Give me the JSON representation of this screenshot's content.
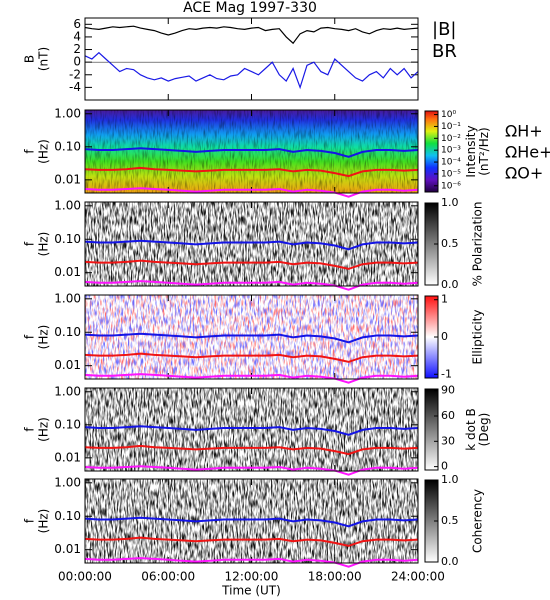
{
  "chart_data": [
    {
      "type": "line",
      "title": "ACE Mag 1997-330",
      "ylabel": [
        "B",
        "(nT)"
      ],
      "ylim": [
        -6,
        7
      ],
      "yticks": [
        -4,
        -2,
        0,
        2,
        4,
        6
      ],
      "x": [
        0,
        0.5,
        1,
        1.5,
        2,
        2.5,
        3,
        3.5,
        4,
        4.5,
        5,
        5.5,
        6,
        6.5,
        7,
        7.5,
        8,
        8.5,
        9,
        9.5,
        10,
        10.5,
        11,
        11.5,
        12,
        12.5,
        13,
        13.5,
        14,
        14.5,
        15,
        15.5,
        16,
        16.5,
        17,
        17.5,
        18,
        18.5,
        19,
        19.5,
        20,
        20.5,
        21,
        21.5,
        22,
        22.5,
        23,
        23.5,
        24
      ],
      "series": [
        {
          "name": "|B|",
          "color": "#000000",
          "values": [
            5.5,
            5.3,
            5.2,
            5.4,
            5.6,
            5.5,
            5.6,
            5.7,
            5.4,
            5.2,
            5.0,
            4.6,
            4.3,
            4.6,
            5.0,
            5.3,
            5.2,
            5.4,
            5.5,
            5.4,
            5.6,
            5.5,
            5.3,
            5.2,
            5.4,
            5.5,
            5.0,
            5.2,
            5.3,
            4.0,
            3.0,
            4.5,
            5.0,
            4.8,
            5.4,
            5.5,
            5.3,
            5.2,
            5.0,
            5.3,
            4.8,
            4.5,
            5.0,
            5.3,
            5.2,
            5.4,
            5.2,
            5.3,
            5.4
          ]
        },
        {
          "name": "BR",
          "color": "#1a1ae6",
          "values": [
            1.0,
            0.5,
            1.5,
            0.5,
            -0.5,
            -1.5,
            -1.0,
            -1.2,
            -2.0,
            -2.5,
            -2.8,
            -2.5,
            -3.0,
            -2.6,
            -2.4,
            -2.2,
            -3.0,
            -2.5,
            -2.0,
            -2.6,
            -2.8,
            -2.2,
            -2.0,
            -1.0,
            -1.5,
            -2.0,
            -1.0,
            0.0,
            -2.0,
            -3.0,
            -1.0,
            -4.0,
            -0.5,
            0.0,
            -1.5,
            -2.0,
            0.5,
            -0.5,
            -1.5,
            -2.5,
            -3.0,
            -2.0,
            -1.5,
            -2.5,
            -1.0,
            -2.0,
            -1.0,
            -2.5,
            -1.5
          ]
        }
      ]
    },
    {
      "type": "spectrogram",
      "colormap": "rainbow",
      "ylabel": [
        "f",
        "(Hz)"
      ],
      "log_scale": true,
      "ylim": [
        0.004,
        1.3
      ],
      "yticks": [
        {
          "value": 0.01,
          "label": "0.01"
        },
        {
          "value": 0.1,
          "label": "0.10"
        },
        {
          "value": 1,
          "label": "1.00"
        }
      ],
      "colorbar_label": [
        "Intensity",
        "(nT²/Hz)"
      ],
      "colorbar_log": true,
      "clim": [
        3e-07,
        2
      ],
      "colorbar_ticks": [
        {
          "value": 1,
          "label": "10⁰"
        },
        {
          "value": 0.1,
          "label": "10⁻¹"
        },
        {
          "value": 0.01,
          "label": "10⁻²"
        },
        {
          "value": 0.001,
          "label": "10⁻³"
        },
        {
          "value": 0.0001,
          "label": "10⁻⁴"
        },
        {
          "value": 1e-05,
          "label": "10⁻⁵"
        },
        {
          "value": 1e-06,
          "label": "10⁻⁶"
        }
      ],
      "x": [
        0,
        1,
        2,
        3,
        4,
        5,
        6,
        7,
        8,
        9,
        10,
        11,
        12,
        13,
        14,
        15,
        16,
        17,
        18,
        19,
        20,
        21,
        22,
        23,
        24
      ],
      "series": [
        {
          "name": "ΩH+",
          "color": "#1414e6",
          "values": [
            0.085,
            0.08,
            0.08,
            0.085,
            0.09,
            0.085,
            0.08,
            0.075,
            0.07,
            0.075,
            0.08,
            0.08,
            0.08,
            0.08,
            0.085,
            0.07,
            0.08,
            0.075,
            0.065,
            0.05,
            0.07,
            0.08,
            0.08,
            0.075,
            0.08
          ]
        },
        {
          "name": "ΩHe+",
          "color": "#f01414",
          "values": [
            0.021,
            0.02,
            0.02,
            0.021,
            0.023,
            0.021,
            0.02,
            0.019,
            0.018,
            0.019,
            0.02,
            0.02,
            0.02,
            0.02,
            0.021,
            0.018,
            0.02,
            0.019,
            0.016,
            0.013,
            0.018,
            0.02,
            0.02,
            0.019,
            0.02
          ]
        },
        {
          "name": "ΩO+",
          "color": "#ff14ff",
          "values": [
            0.0053,
            0.005,
            0.005,
            0.0053,
            0.0056,
            0.0053,
            0.005,
            0.0047,
            0.0044,
            0.0047,
            0.005,
            0.005,
            0.005,
            0.005,
            0.0053,
            0.0044,
            0.005,
            0.0047,
            0.0041,
            0.0031,
            0.0044,
            0.005,
            0.005,
            0.0047,
            0.005
          ]
        }
      ]
    },
    {
      "type": "spectrogram",
      "colormap": "gray",
      "ylabel": [
        "f",
        "(Hz)"
      ],
      "log_scale": true,
      "ylim": [
        0.004,
        1.3
      ],
      "yticks": [
        {
          "value": 0.01,
          "label": "0.01"
        },
        {
          "value": 0.1,
          "label": "0.10"
        },
        {
          "value": 1,
          "label": "1.00"
        }
      ],
      "colorbar_label": [
        "% Polarization"
      ],
      "clim": [
        0,
        1
      ],
      "colorbar_ticks": [
        {
          "value": 0,
          "label": "0.0"
        },
        0.5,
        {
          "value": 1,
          "label": "1.0"
        }
      ]
    },
    {
      "type": "spectrogram",
      "colormap": "bwr",
      "ylabel": [
        "f",
        "(Hz)"
      ],
      "log_scale": true,
      "ylim": [
        0.004,
        1.3
      ],
      "yticks": [
        {
          "value": 0.01,
          "label": "0.01"
        },
        {
          "value": 0.1,
          "label": "0.10"
        },
        {
          "value": 1,
          "label": "1.00"
        }
      ],
      "colorbar_label": [
        "Ellipticity"
      ],
      "clim": [
        -1.1,
        1.1
      ],
      "colorbar_ticks": [
        -1,
        0,
        1
      ]
    },
    {
      "type": "spectrogram",
      "colormap": "gray",
      "ylabel": [
        "f",
        "(Hz)"
      ],
      "log_scale": true,
      "ylim": [
        0.004,
        1.3
      ],
      "yticks": [
        {
          "value": 0.01,
          "label": "0.01"
        },
        {
          "value": 0.1,
          "label": "0.10"
        },
        {
          "value": 1,
          "label": "1.00"
        }
      ],
      "colorbar_label": [
        "k dot B",
        "(Deg)"
      ],
      "clim": [
        -4,
        92
      ],
      "colorbar_ticks": [
        0,
        30,
        60,
        90
      ]
    },
    {
      "type": "spectrogram",
      "colormap": "gray",
      "ylabel": [
        "f",
        "(Hz)"
      ],
      "log_scale": true,
      "ylim": [
        0.004,
        1.3
      ],
      "yticks": [
        {
          "value": 0.01,
          "label": "0.01"
        },
        {
          "value": 0.1,
          "label": "0.10"
        },
        {
          "value": 1,
          "label": "1.00"
        }
      ],
      "colorbar_label": [
        "Coherency"
      ],
      "clim": [
        0,
        1
      ],
      "colorbar_ticks": [
        {
          "value": 0,
          "label": "0.0"
        },
        0.5,
        {
          "value": 1,
          "label": "1.0"
        }
      ],
      "xlabel": "Time (UT)",
      "xlim": [
        0,
        24
      ],
      "xticks": [
        {
          "value": 0,
          "label": "00:00:00"
        },
        {
          "value": 6,
          "label": "06:00:00"
        },
        {
          "value": 12,
          "label": "12:00:00"
        },
        {
          "value": 18,
          "label": "18:00:00"
        },
        {
          "value": 24,
          "label": "24:00:00"
        }
      ]
    }
  ]
}
